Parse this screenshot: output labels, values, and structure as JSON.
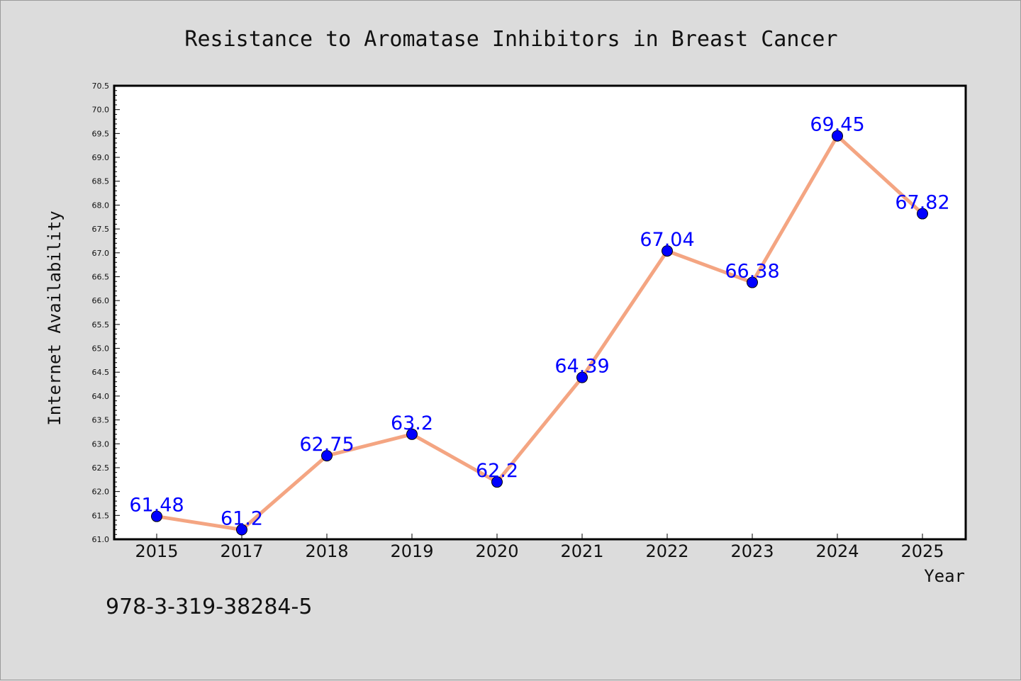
{
  "chart_data": {
    "type": "line",
    "title": "Resistance to Aromatase Inhibitors in Breast Cancer",
    "xlabel": "Year",
    "ylabel": "Internet Availability",
    "categories": [
      "2015",
      "2017",
      "2018",
      "2019",
      "2020",
      "2021",
      "2022",
      "2023",
      "2024",
      "2025"
    ],
    "series": [
      {
        "values": [
          61.48,
          61.2,
          62.75,
          63.2,
          62.2,
          64.39,
          67.04,
          66.38,
          69.45,
          67.82
        ],
        "labels": [
          "61.48",
          "61.2",
          "62.75",
          "63.2",
          "62.2",
          "64.39",
          "67.04",
          "66.38",
          "69.45",
          "67.82"
        ]
      }
    ],
    "ylim": [
      61.0,
      70.5
    ],
    "yticks": [
      "61.0",
      "61.5",
      "62.0",
      "62.5",
      "63.0",
      "63.5",
      "64.0",
      "64.5",
      "65.0",
      "65.5",
      "66.0",
      "66.5",
      "67.0",
      "67.5",
      "68.0",
      "68.5",
      "69.0",
      "69.5",
      "70.0",
      "70.5"
    ],
    "grid": false,
    "legend": "none",
    "colors": {
      "line": "#f4a582",
      "marker": "#0000ff",
      "marker_edge": "#000000",
      "data_label": "#0000ff",
      "background": "#dcdcdc",
      "plot_background": "#ffffff"
    }
  },
  "annotation": {
    "isbn": "978-3-319-38284-5"
  }
}
